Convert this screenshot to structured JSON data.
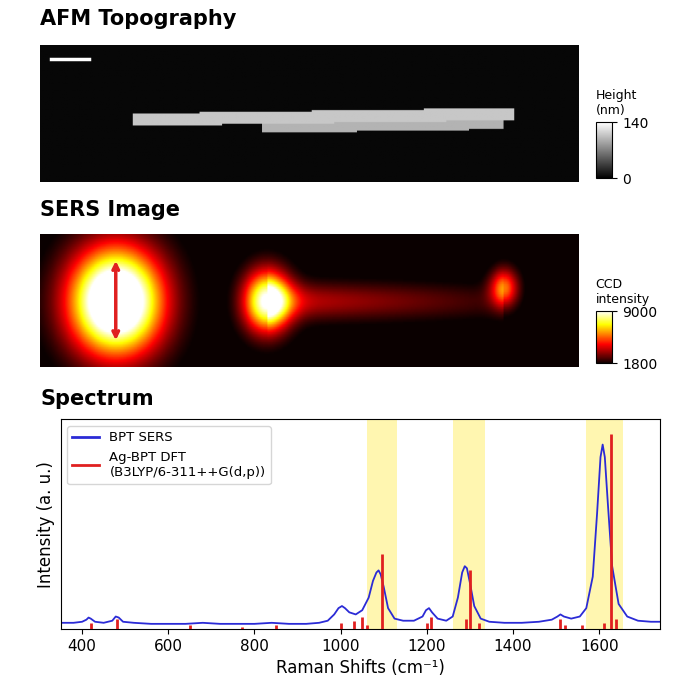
{
  "chart_data": [
    {
      "type": "image",
      "title": "AFM Topography",
      "colorbar": {
        "label": "Height\n(nm)",
        "lim": [
          0,
          140
        ],
        "ticks": [
          0,
          140
        ]
      }
    },
    {
      "type": "image",
      "title": "SERS Image",
      "colorbar": {
        "label": "CCD\nintensity",
        "lim": [
          1800,
          9000
        ],
        "ticks": [
          1800,
          9000
        ]
      }
    },
    {
      "type": "line",
      "title": "Spectrum",
      "x_label": "Raman Shifts (cm⁻¹)",
      "y_label": "Intensity (a. u.)",
      "xlim": [
        350,
        1740
      ],
      "xticks": [
        400,
        600,
        800,
        1000,
        1200,
        1400,
        1600
      ],
      "ylim": [
        0,
        1
      ],
      "yticks": [],
      "tick_labels": "x",
      "legend": "upper left",
      "highlights": [
        [
          1060,
          1130
        ],
        [
          1260,
          1335
        ],
        [
          1570,
          1655
        ]
      ],
      "series": [
        {
          "name": "BPT SERS",
          "type": "line",
          "color": "#2b2bd6",
          "x": [
            350,
            380,
            400,
            410,
            415,
            420,
            430,
            450,
            470,
            478,
            485,
            495,
            520,
            560,
            600,
            640,
            680,
            720,
            760,
            800,
            840,
            880,
            920,
            950,
            970,
            985,
            995,
            1003,
            1010,
            1020,
            1035,
            1050,
            1065,
            1075,
            1083,
            1088,
            1093,
            1100,
            1110,
            1125,
            1145,
            1170,
            1190,
            1198,
            1205,
            1212,
            1225,
            1245,
            1260,
            1272,
            1282,
            1288,
            1293,
            1300,
            1310,
            1325,
            1345,
            1380,
            1420,
            1460,
            1490,
            1503,
            1510,
            1518,
            1535,
            1555,
            1570,
            1585,
            1595,
            1603,
            1608,
            1613,
            1620,
            1630,
            1645,
            1665,
            1690,
            1720,
            1740
          ],
          "values": [
            0.03,
            0.03,
            0.035,
            0.045,
            0.055,
            0.05,
            0.035,
            0.03,
            0.04,
            0.06,
            0.055,
            0.035,
            0.03,
            0.025,
            0.025,
            0.025,
            0.03,
            0.025,
            0.025,
            0.025,
            0.03,
            0.025,
            0.025,
            0.03,
            0.04,
            0.07,
            0.1,
            0.11,
            0.1,
            0.08,
            0.07,
            0.09,
            0.15,
            0.23,
            0.27,
            0.28,
            0.26,
            0.2,
            0.1,
            0.05,
            0.04,
            0.04,
            0.06,
            0.09,
            0.1,
            0.08,
            0.05,
            0.04,
            0.06,
            0.15,
            0.27,
            0.3,
            0.29,
            0.22,
            0.11,
            0.05,
            0.035,
            0.03,
            0.03,
            0.035,
            0.045,
            0.06,
            0.07,
            0.06,
            0.05,
            0.06,
            0.1,
            0.25,
            0.55,
            0.82,
            0.88,
            0.82,
            0.6,
            0.3,
            0.12,
            0.06,
            0.04,
            0.035,
            0.035
          ]
        },
        {
          "name": "Ag-BPT DFT\n(B3LYP/6-311++G(d,p))",
          "type": "stick",
          "color": "#e02020",
          "x": [
            420,
            480,
            650,
            770,
            850,
            1000,
            1030,
            1050,
            1060,
            1095,
            1200,
            1210,
            1290,
            1300,
            1320,
            1510,
            1520,
            1560,
            1610,
            1628,
            1640
          ],
          "values": [
            0.03,
            0.05,
            0.02,
            0.01,
            0.02,
            0.03,
            0.04,
            0.06,
            0.02,
            0.36,
            0.03,
            0.06,
            0.05,
            0.28,
            0.03,
            0.05,
            0.02,
            0.02,
            0.03,
            0.93,
            0.05
          ]
        }
      ]
    }
  ]
}
